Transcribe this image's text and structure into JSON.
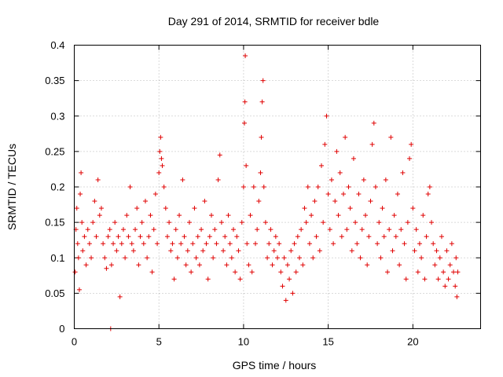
{
  "chart_data": {
    "type": "scatter",
    "title": "Day 291 of 2014, SRMTID for receiver bdle",
    "xlabel": "GPS time / hours",
    "ylabel": "SRMTID / TECUs",
    "xlim": [
      0,
      24
    ],
    "ylim": [
      0,
      0.4
    ],
    "xticks": [
      0,
      5,
      10,
      15,
      20
    ],
    "xtick_labels": [
      "0",
      "5",
      "10",
      "15",
      "20"
    ],
    "yticks": [
      0,
      0.05,
      0.1,
      0.15,
      0.2,
      0.25,
      0.3,
      0.35,
      0.4
    ],
    "ytick_labels": [
      "0",
      "0.05",
      "0.1",
      "0.15",
      "0.2",
      "0.25",
      "0.3",
      "0.35",
      "0.4"
    ],
    "grid": true,
    "marker": "plus",
    "color": "#e00000",
    "series": [
      {
        "name": "SRMTID",
        "points": [
          [
            0.05,
            0.08
          ],
          [
            0.1,
            0.14
          ],
          [
            0.15,
            0.17
          ],
          [
            0.2,
            0.12
          ],
          [
            0.25,
            0.1
          ],
          [
            0.3,
            0.055
          ],
          [
            0.35,
            0.19
          ],
          [
            0.4,
            0.22
          ],
          [
            0.45,
            0.15
          ],
          [
            0.5,
            0.11
          ],
          [
            0.6,
            0.13
          ],
          [
            0.7,
            0.09
          ],
          [
            0.8,
            0.14
          ],
          [
            0.9,
            0.12
          ],
          [
            1.0,
            0.1
          ],
          [
            1.1,
            0.15
          ],
          [
            1.2,
            0.18
          ],
          [
            1.3,
            0.13
          ],
          [
            1.4,
            0.21
          ],
          [
            1.5,
            0.16
          ],
          [
            1.6,
            0.17
          ],
          [
            1.7,
            0.12
          ],
          [
            1.8,
            0.1
          ],
          [
            1.9,
            0.085
          ],
          [
            2.0,
            0.13
          ],
          [
            2.1,
            0.14
          ],
          [
            2.2,
            0.09
          ],
          [
            2.3,
            0.12
          ],
          [
            2.4,
            0.15
          ],
          [
            2.5,
            0.11
          ],
          [
            2.6,
            0.13
          ],
          [
            2.7,
            0.045
          ],
          [
            2.8,
            0.12
          ],
          [
            2.9,
            0.14
          ],
          [
            3.0,
            0.1
          ],
          [
            3.1,
            0.16
          ],
          [
            3.2,
            0.13
          ],
          [
            3.3,
            0.2
          ],
          [
            3.4,
            0.12
          ],
          [
            3.5,
            0.11
          ],
          [
            3.6,
            0.14
          ],
          [
            3.7,
            0.17
          ],
          [
            3.8,
            0.09
          ],
          [
            3.9,
            0.13
          ],
          [
            4.0,
            0.15
          ],
          [
            4.1,
            0.12
          ],
          [
            4.2,
            0.18
          ],
          [
            4.3,
            0.1
          ],
          [
            4.4,
            0.13
          ],
          [
            4.5,
            0.16
          ],
          [
            4.6,
            0.08
          ],
          [
            4.7,
            0.14
          ],
          [
            4.8,
            0.19
          ],
          [
            4.9,
            0.12
          ],
          [
            5.0,
            0.22
          ],
          [
            5.05,
            0.25
          ],
          [
            5.1,
            0.27
          ],
          [
            5.15,
            0.24
          ],
          [
            5.2,
            0.23
          ],
          [
            5.3,
            0.2
          ],
          [
            5.4,
            0.17
          ],
          [
            5.5,
            0.13
          ],
          [
            5.6,
            0.15
          ],
          [
            5.7,
            0.11
          ],
          [
            5.8,
            0.12
          ],
          [
            5.9,
            0.07
          ],
          [
            6.0,
            0.14
          ],
          [
            6.1,
            0.1
          ],
          [
            6.2,
            0.16
          ],
          [
            6.3,
            0.12
          ],
          [
            6.4,
            0.21
          ],
          [
            6.5,
            0.13
          ],
          [
            6.6,
            0.09
          ],
          [
            6.7,
            0.11
          ],
          [
            6.8,
            0.15
          ],
          [
            6.9,
            0.08
          ],
          [
            7.0,
            0.12
          ],
          [
            7.1,
            0.17
          ],
          [
            7.2,
            0.1
          ],
          [
            7.3,
            0.13
          ],
          [
            7.4,
            0.09
          ],
          [
            7.5,
            0.14
          ],
          [
            7.6,
            0.11
          ],
          [
            7.7,
            0.18
          ],
          [
            7.8,
            0.12
          ],
          [
            7.9,
            0.07
          ],
          [
            8.0,
            0.13
          ],
          [
            8.1,
            0.16
          ],
          [
            8.2,
            0.1
          ],
          [
            8.3,
            0.14
          ],
          [
            8.4,
            0.12
          ],
          [
            8.5,
            0.21
          ],
          [
            8.6,
            0.245
          ],
          [
            8.7,
            0.15
          ],
          [
            8.8,
            0.11
          ],
          [
            8.9,
            0.13
          ],
          [
            9.0,
            0.09
          ],
          [
            9.1,
            0.16
          ],
          [
            9.2,
            0.12
          ],
          [
            9.3,
            0.1
          ],
          [
            9.4,
            0.14
          ],
          [
            9.5,
            0.08
          ],
          [
            9.6,
            0.13
          ],
          [
            9.7,
            0.11
          ],
          [
            9.8,
            0.07
          ],
          [
            9.9,
            0.15
          ],
          [
            10.0,
            0.2
          ],
          [
            10.05,
            0.29
          ],
          [
            10.08,
            0.32
          ],
          [
            10.1,
            0.385
          ],
          [
            10.15,
            0.23
          ],
          [
            10.2,
            0.12
          ],
          [
            10.3,
            0.09
          ],
          [
            10.4,
            0.16
          ],
          [
            10.5,
            0.08
          ],
          [
            10.6,
            0.2
          ],
          [
            10.7,
            0.12
          ],
          [
            10.8,
            0.14
          ],
          [
            10.9,
            0.18
          ],
          [
            11.0,
            0.22
          ],
          [
            11.05,
            0.27
          ],
          [
            11.1,
            0.32
          ],
          [
            11.15,
            0.35
          ],
          [
            11.2,
            0.2
          ],
          [
            11.3,
            0.15
          ],
          [
            11.4,
            0.1
          ],
          [
            11.5,
            0.12
          ],
          [
            11.6,
            0.14
          ],
          [
            11.7,
            0.09
          ],
          [
            11.8,
            0.11
          ],
          [
            11.9,
            0.13
          ],
          [
            12.0,
            0.1
          ],
          [
            12.1,
            0.12
          ],
          [
            12.2,
            0.08
          ],
          [
            12.3,
            0.06
          ],
          [
            12.4,
            0.1
          ],
          [
            12.5,
            0.04
          ],
          [
            12.6,
            0.09
          ],
          [
            12.7,
            0.07
          ],
          [
            12.8,
            0.11
          ],
          [
            12.9,
            0.05
          ],
          [
            13.0,
            0.12
          ],
          [
            13.1,
            0.08
          ],
          [
            13.2,
            0.13
          ],
          [
            13.3,
            0.1
          ],
          [
            13.4,
            0.14
          ],
          [
            13.5,
            0.09
          ],
          [
            13.6,
            0.17
          ],
          [
            13.7,
            0.15
          ],
          [
            13.8,
            0.2
          ],
          [
            13.9,
            0.12
          ],
          [
            14.0,
            0.16
          ],
          [
            14.1,
            0.1
          ],
          [
            14.2,
            0.18
          ],
          [
            14.3,
            0.13
          ],
          [
            14.4,
            0.2
          ],
          [
            14.5,
            0.11
          ],
          [
            14.6,
            0.23
          ],
          [
            14.7,
            0.15
          ],
          [
            14.8,
            0.26
          ],
          [
            14.9,
            0.3
          ],
          [
            15.0,
            0.19
          ],
          [
            15.1,
            0.14
          ],
          [
            15.2,
            0.21
          ],
          [
            15.3,
            0.12
          ],
          [
            15.4,
            0.18
          ],
          [
            15.5,
            0.25
          ],
          [
            15.6,
            0.16
          ],
          [
            15.7,
            0.22
          ],
          [
            15.8,
            0.13
          ],
          [
            15.9,
            0.19
          ],
          [
            16.0,
            0.27
          ],
          [
            16.1,
            0.14
          ],
          [
            16.2,
            0.2
          ],
          [
            16.3,
            0.17
          ],
          [
            16.4,
            0.11
          ],
          [
            16.5,
            0.24
          ],
          [
            16.6,
            0.15
          ],
          [
            16.7,
            0.12
          ],
          [
            16.8,
            0.19
          ],
          [
            16.9,
            0.1
          ],
          [
            17.0,
            0.14
          ],
          [
            17.1,
            0.21
          ],
          [
            17.2,
            0.16
          ],
          [
            17.3,
            0.09
          ],
          [
            17.4,
            0.13
          ],
          [
            17.5,
            0.18
          ],
          [
            17.6,
            0.26
          ],
          [
            17.7,
            0.29
          ],
          [
            17.8,
            0.2
          ],
          [
            17.9,
            0.12
          ],
          [
            18.0,
            0.15
          ],
          [
            18.1,
            0.1
          ],
          [
            18.2,
            0.17
          ],
          [
            18.3,
            0.13
          ],
          [
            18.4,
            0.21
          ],
          [
            18.5,
            0.08
          ],
          [
            18.6,
            0.14
          ],
          [
            18.7,
            0.27
          ],
          [
            18.8,
            0.11
          ],
          [
            18.9,
            0.16
          ],
          [
            19.0,
            0.13
          ],
          [
            19.1,
            0.19
          ],
          [
            19.2,
            0.09
          ],
          [
            19.3,
            0.14
          ],
          [
            19.4,
            0.22
          ],
          [
            19.5,
            0.12
          ],
          [
            19.6,
            0.07
          ],
          [
            19.7,
            0.15
          ],
          [
            19.8,
            0.24
          ],
          [
            19.9,
            0.26
          ],
          [
            20.0,
            0.17
          ],
          [
            20.1,
            0.11
          ],
          [
            20.2,
            0.14
          ],
          [
            20.3,
            0.08
          ],
          [
            20.4,
            0.12
          ],
          [
            20.5,
            0.1
          ],
          [
            20.6,
            0.16
          ],
          [
            20.7,
            0.07
          ],
          [
            20.8,
            0.13
          ],
          [
            20.9,
            0.19
          ],
          [
            21.0,
            0.2
          ],
          [
            21.1,
            0.15
          ],
          [
            21.2,
            0.12
          ],
          [
            21.3,
            0.09
          ],
          [
            21.4,
            0.11
          ],
          [
            21.5,
            0.07
          ],
          [
            21.6,
            0.1
          ],
          [
            21.7,
            0.13
          ],
          [
            21.8,
            0.08
          ],
          [
            21.9,
            0.06
          ],
          [
            22.0,
            0.11
          ],
          [
            22.1,
            0.07
          ],
          [
            22.2,
            0.09
          ],
          [
            22.3,
            0.12
          ],
          [
            22.4,
            0.08
          ],
          [
            22.5,
            0.06
          ],
          [
            22.55,
            0.1
          ],
          [
            22.6,
            0.045
          ],
          [
            22.65,
            0.08
          ],
          [
            2.15,
            0.0
          ]
        ]
      }
    ]
  }
}
